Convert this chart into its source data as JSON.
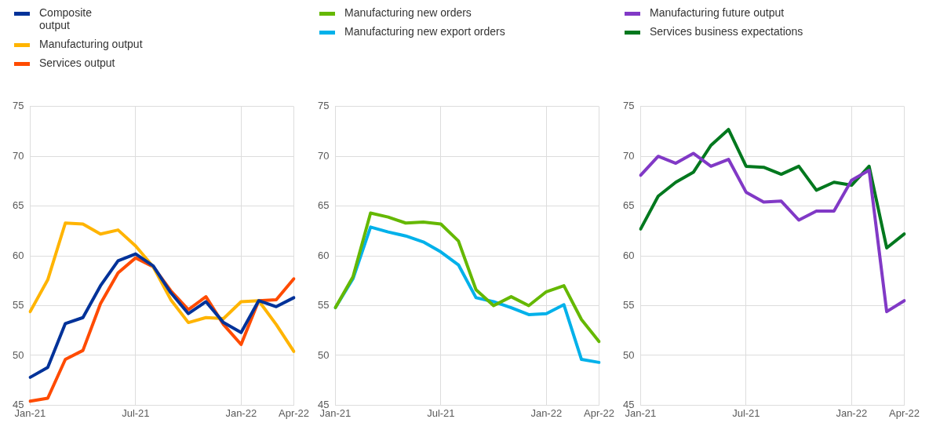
{
  "chart_data": [
    {
      "type": "line",
      "legend": "top",
      "grid": true,
      "line_style": "solid",
      "marker": "none",
      "categories": [
        "Jan-21",
        null,
        null,
        null,
        null,
        null,
        "Jul-21",
        null,
        null,
        null,
        null,
        null,
        "Jan-22",
        null,
        null,
        "Apr-22"
      ],
      "ylim": [
        45,
        75
      ],
      "yticks": [
        45,
        50,
        55,
        60,
        65,
        70,
        75
      ],
      "series": [
        {
          "name": "Composite\noutput",
          "color": "#003299",
          "values": [
            47.8,
            48.8,
            53.2,
            53.8,
            57.0,
            59.5,
            60.2,
            59.0,
            56.3,
            54.2,
            55.4,
            53.3,
            52.3,
            55.5,
            54.9,
            55.8
          ]
        },
        {
          "name": "Manufacturing output",
          "color": "#ffb400",
          "values": [
            54.4,
            57.6,
            63.3,
            63.2,
            62.2,
            62.6,
            61.0,
            58.9,
            55.6,
            53.3,
            53.8,
            53.7,
            55.4,
            55.5,
            53.1,
            50.4
          ]
        },
        {
          "name": "Services output",
          "color": "#ff4b00",
          "values": [
            45.4,
            45.7,
            49.6,
            50.5,
            55.2,
            58.3,
            59.8,
            58.9,
            56.5,
            54.6,
            55.9,
            53.1,
            51.1,
            55.5,
            55.6,
            57.7
          ]
        }
      ]
    },
    {
      "type": "line",
      "legend": "top",
      "grid": true,
      "line_style": "solid",
      "marker": "none",
      "categories": [
        "Jan-21",
        null,
        null,
        null,
        null,
        null,
        "Jul-21",
        null,
        null,
        null,
        null,
        null,
        "Jan-22",
        null,
        null,
        "Apr-22"
      ],
      "ylim": [
        45,
        75
      ],
      "yticks": [
        45,
        50,
        55,
        60,
        65,
        70,
        75
      ],
      "series": [
        {
          "name": "Manufacturing new orders",
          "color": "#65b800",
          "values": [
            54.8,
            57.9,
            64.3,
            63.9,
            63.3,
            63.4,
            63.2,
            61.5,
            56.6,
            55.0,
            55.9,
            55.0,
            56.4,
            57.0,
            53.6,
            51.4
          ]
        },
        {
          "name": "Manufacturing new export orders",
          "color": "#00b1ea",
          "values": [
            54.8,
            57.7,
            62.9,
            62.4,
            62.0,
            61.4,
            60.4,
            59.1,
            55.8,
            55.4,
            54.8,
            54.1,
            54.2,
            55.1,
            49.6,
            49.3
          ]
        }
      ]
    },
    {
      "type": "line",
      "legend": "top",
      "grid": true,
      "line_style": "solid",
      "marker": "none",
      "categories": [
        "Jan-21",
        null,
        null,
        null,
        null,
        null,
        "Jul-21",
        null,
        null,
        null,
        null,
        null,
        "Jan-22",
        null,
        null,
        "Apr-22"
      ],
      "ylim": [
        45,
        75
      ],
      "yticks": [
        45,
        50,
        55,
        60,
        65,
        70,
        75
      ],
      "series": [
        {
          "name": "Manufacturing future output",
          "color": "#8139c6",
          "values": [
            68.1,
            70.0,
            69.3,
            70.3,
            69.0,
            69.7,
            66.4,
            65.4,
            65.5,
            63.6,
            64.5,
            64.5,
            67.6,
            68.6,
            54.4,
            55.5
          ]
        },
        {
          "name": "Services business expectations",
          "color": "#00781e",
          "values": [
            62.7,
            66.0,
            67.4,
            68.4,
            71.1,
            72.7,
            69.0,
            68.9,
            68.2,
            69.0,
            66.6,
            67.4,
            67.1,
            69.0,
            60.8,
            62.2
          ]
        }
      ]
    }
  ]
}
